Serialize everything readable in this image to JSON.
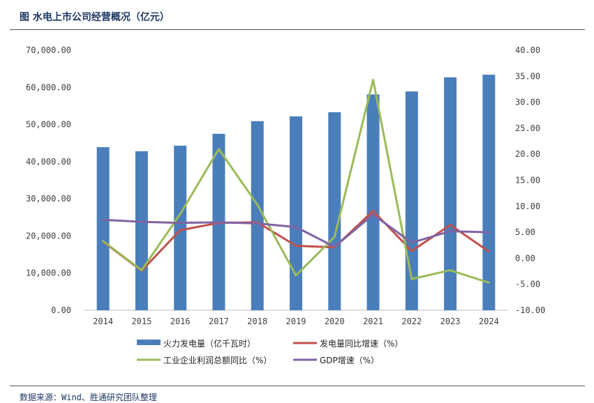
{
  "title": "图 水电上市公司经营概况（亿元）",
  "source": "数据来源：Wind、胜通研究团队整理",
  "chart_data": {
    "type": "bar",
    "categories": [
      "2014",
      "2015",
      "2016",
      "2017",
      "2018",
      "2019",
      "2020",
      "2021",
      "2022",
      "2023",
      "2024"
    ],
    "series": [
      {
        "name": "火力发电量（亿千瓦时）",
        "type": "bar",
        "axis": "left",
        "color": "#4a7ebb",
        "values": [
          43900,
          42800,
          44300,
          47500,
          50900,
          52200,
          53300,
          58100,
          58900,
          62700,
          63400
        ]
      },
      {
        "name": "发电量同比增速（%）",
        "type": "line",
        "axis": "right",
        "color": "#c0504d",
        "values": [
          3.2,
          -2.4,
          5.4,
          6.8,
          6.9,
          2.4,
          2.1,
          9.1,
          1.4,
          6.4,
          1.3
        ]
      },
      {
        "name": "工业企业利润总额同比（%）",
        "type": "line",
        "axis": "right",
        "color": "#9bbb59",
        "values": [
          3.3,
          -2.3,
          8.5,
          21.0,
          10.3,
          -3.3,
          4.1,
          34.3,
          -4.0,
          -2.3,
          -4.7
        ]
      },
      {
        "name": "GDP增速（%）",
        "type": "line",
        "axis": "right",
        "color": "#8064a2",
        "values": [
          7.4,
          7.0,
          6.8,
          6.9,
          6.7,
          6.0,
          2.2,
          8.4,
          3.0,
          5.2,
          5.0
        ]
      }
    ],
    "left_axis": {
      "min": 0,
      "max": 70000,
      "step": 10000,
      "tick_labels": [
        "0.00",
        "10,000.00",
        "20,000.00",
        "30,000.00",
        "40,000.00",
        "50,000.00",
        "60,000.00",
        "70,000.00"
      ]
    },
    "right_axis": {
      "min": -10,
      "max": 40,
      "step": 5,
      "tick_labels": [
        "-10.00",
        "-5.00",
        "0.00",
        "5.00",
        "10.00",
        "15.00",
        "20.00",
        "25.00",
        "30.00",
        "35.00",
        "40.00"
      ]
    },
    "grid": false,
    "legend_position": "bottom"
  }
}
